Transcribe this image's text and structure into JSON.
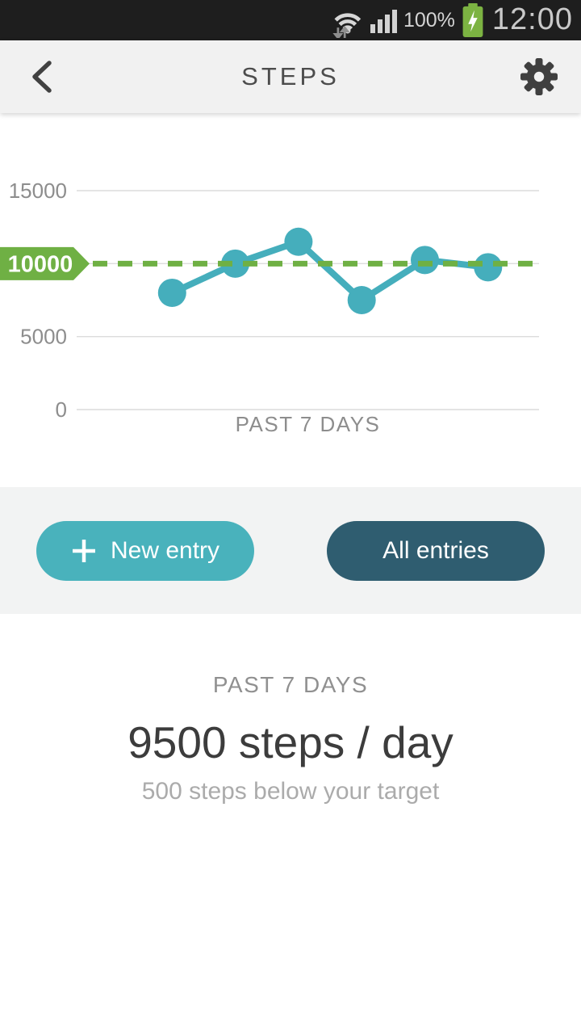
{
  "status_bar": {
    "battery_percent": "100%",
    "time": "12:00"
  },
  "header": {
    "title": "STEPS"
  },
  "chart_data": {
    "type": "line",
    "title": "",
    "xlabel": "PAST 7 DAYS",
    "ylabel": "",
    "ylim": [
      0,
      15000
    ],
    "yticks": [
      0,
      5000,
      10000,
      15000
    ],
    "grid": true,
    "legend": false,
    "days": 7,
    "values": [
      null,
      8000,
      10000,
      11500,
      7500,
      10250,
      9750
    ],
    "target": {
      "value": 10000,
      "label": "10000"
    },
    "colors": {
      "line": "#45aebc",
      "target": "#6fb044",
      "grid": "#dcdcdc",
      "tick_text": "#8d8d8d"
    }
  },
  "actions": {
    "new_entry_label": "New entry",
    "all_entries_label": "All entries"
  },
  "summary": {
    "period_label": "PAST 7 DAYS",
    "average_text": "9500 steps / day",
    "delta_text": "500 steps below your target"
  },
  "icons": {
    "wifi": "wifi fan with up/down sync arrows",
    "signal": "4-bar cell signal",
    "battery": "green charging battery with bolt",
    "back": "left chevron",
    "settings": "gear",
    "plus": "+"
  },
  "colors": {
    "status_bar_bg": "#1e1e1e",
    "header_bg": "#f1f1f1",
    "band_bg": "#f2f3f3",
    "accent_teal": "#49b2bc",
    "dark_teal": "#2f5d70",
    "target_green": "#6fb044"
  }
}
